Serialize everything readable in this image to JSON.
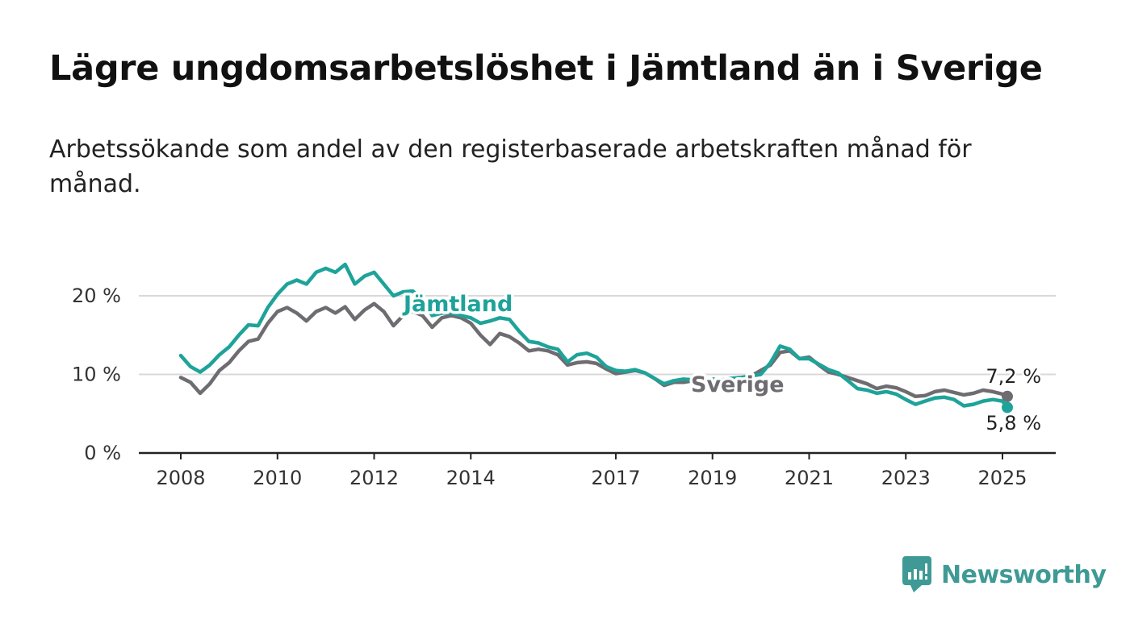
{
  "title": "Lägre ungdomsarbetslöshet i Jämtland än i Sverige",
  "subtitle": "Arbetssökande som andel av den registerbaserade arbetskraften månad för månad.",
  "brand": {
    "name": "Newsworthy",
    "color": "#3f9a95",
    "icon": "newsworthy-logo-icon"
  },
  "chart_data": {
    "type": "line",
    "ylim": [
      0,
      25
    ],
    "yticks": [
      0,
      10,
      20
    ],
    "ytick_labels": [
      "0 %",
      "10 %",
      "20 %"
    ],
    "xlim": [
      2008,
      2025.5
    ],
    "xticks": [
      2008,
      2010,
      2012,
      2014,
      2017,
      2019,
      2021,
      2023,
      2025
    ],
    "xtick_labels": [
      "2008",
      "2010",
      "2012",
      "2014",
      "2017",
      "2019",
      "2021",
      "2023",
      "2025"
    ],
    "grid": true,
    "legend": "inline labels",
    "series": [
      {
        "name": "Sverige",
        "color": "#6e6c70",
        "end_label": "7,2 %",
        "points": [
          [
            2008.0,
            9.6
          ],
          [
            2008.2,
            9.0
          ],
          [
            2008.4,
            7.6
          ],
          [
            2008.6,
            8.8
          ],
          [
            2008.8,
            10.5
          ],
          [
            2009.0,
            11.5
          ],
          [
            2009.2,
            13.0
          ],
          [
            2009.4,
            14.2
          ],
          [
            2009.6,
            14.5
          ],
          [
            2009.8,
            16.5
          ],
          [
            2010.0,
            18.0
          ],
          [
            2010.2,
            18.5
          ],
          [
            2010.4,
            17.8
          ],
          [
            2010.6,
            16.8
          ],
          [
            2010.8,
            18.0
          ],
          [
            2011.0,
            18.5
          ],
          [
            2011.2,
            17.8
          ],
          [
            2011.4,
            18.6
          ],
          [
            2011.6,
            17.0
          ],
          [
            2011.8,
            18.2
          ],
          [
            2012.0,
            19.0
          ],
          [
            2012.2,
            18.0
          ],
          [
            2012.4,
            16.2
          ],
          [
            2012.6,
            17.5
          ],
          [
            2012.8,
            18.0
          ],
          [
            2013.0,
            17.5
          ],
          [
            2013.2,
            16.0
          ],
          [
            2013.4,
            17.2
          ],
          [
            2013.6,
            17.5
          ],
          [
            2013.8,
            17.2
          ],
          [
            2014.0,
            16.5
          ],
          [
            2014.2,
            15.0
          ],
          [
            2014.4,
            13.8
          ],
          [
            2014.6,
            15.2
          ],
          [
            2014.8,
            14.8
          ],
          [
            2015.0,
            14.0
          ],
          [
            2015.2,
            13.0
          ],
          [
            2015.4,
            13.2
          ],
          [
            2015.6,
            13.0
          ],
          [
            2015.8,
            12.5
          ],
          [
            2016.0,
            11.2
          ],
          [
            2016.2,
            11.5
          ],
          [
            2016.4,
            11.6
          ],
          [
            2016.6,
            11.4
          ],
          [
            2016.8,
            10.7
          ],
          [
            2017.0,
            10.1
          ],
          [
            2017.2,
            10.3
          ],
          [
            2017.4,
            10.5
          ],
          [
            2017.6,
            10.2
          ],
          [
            2017.8,
            9.5
          ],
          [
            2018.0,
            8.6
          ],
          [
            2018.2,
            9.0
          ],
          [
            2018.4,
            9.0
          ],
          [
            2018.6,
            9.2
          ],
          [
            2018.8,
            9.2
          ],
          [
            2019.0,
            9.3
          ],
          [
            2019.2,
            9.2
          ],
          [
            2019.4,
            9.4
          ],
          [
            2019.6,
            9.5
          ],
          [
            2019.8,
            9.8
          ],
          [
            2020.0,
            10.5
          ],
          [
            2020.2,
            11.2
          ],
          [
            2020.4,
            12.8
          ],
          [
            2020.6,
            13.0
          ],
          [
            2020.8,
            12.0
          ],
          [
            2021.0,
            12.2
          ],
          [
            2021.2,
            11.2
          ],
          [
            2021.4,
            10.3
          ],
          [
            2021.6,
            10.0
          ],
          [
            2021.8,
            9.6
          ],
          [
            2022.0,
            9.2
          ],
          [
            2022.2,
            8.8
          ],
          [
            2022.4,
            8.2
          ],
          [
            2022.6,
            8.5
          ],
          [
            2022.8,
            8.3
          ],
          [
            2023.0,
            7.8
          ],
          [
            2023.2,
            7.2
          ],
          [
            2023.4,
            7.3
          ],
          [
            2023.6,
            7.8
          ],
          [
            2023.8,
            8.0
          ],
          [
            2024.0,
            7.7
          ],
          [
            2024.2,
            7.4
          ],
          [
            2024.4,
            7.6
          ],
          [
            2024.6,
            8.0
          ],
          [
            2024.8,
            7.8
          ],
          [
            2025.0,
            7.5
          ],
          [
            2025.1,
            7.2
          ]
        ]
      },
      {
        "name": "Jämtland",
        "color": "#1ea39a",
        "end_label": "5,8 %",
        "points": [
          [
            2008.0,
            12.4
          ],
          [
            2008.2,
            11.0
          ],
          [
            2008.4,
            10.3
          ],
          [
            2008.6,
            11.2
          ],
          [
            2008.8,
            12.5
          ],
          [
            2009.0,
            13.5
          ],
          [
            2009.2,
            15.0
          ],
          [
            2009.4,
            16.3
          ],
          [
            2009.6,
            16.2
          ],
          [
            2009.8,
            18.5
          ],
          [
            2010.0,
            20.2
          ],
          [
            2010.2,
            21.5
          ],
          [
            2010.4,
            22.0
          ],
          [
            2010.6,
            21.5
          ],
          [
            2010.8,
            23.0
          ],
          [
            2011.0,
            23.5
          ],
          [
            2011.2,
            23.0
          ],
          [
            2011.4,
            24.0
          ],
          [
            2011.6,
            21.5
          ],
          [
            2011.8,
            22.5
          ],
          [
            2012.0,
            23.0
          ],
          [
            2012.2,
            21.5
          ],
          [
            2012.4,
            20.0
          ],
          [
            2012.6,
            20.5
          ],
          [
            2012.8,
            20.6
          ],
          [
            2013.0,
            19.5
          ],
          [
            2013.2,
            17.5
          ],
          [
            2013.4,
            17.8
          ],
          [
            2013.6,
            17.8
          ],
          [
            2013.8,
            17.5
          ],
          [
            2014.0,
            17.2
          ],
          [
            2014.2,
            16.5
          ],
          [
            2014.4,
            16.8
          ],
          [
            2014.6,
            17.2
          ],
          [
            2014.8,
            17.0
          ],
          [
            2015.0,
            15.5
          ],
          [
            2015.2,
            14.2
          ],
          [
            2015.4,
            14.0
          ],
          [
            2015.6,
            13.5
          ],
          [
            2015.8,
            13.2
          ],
          [
            2016.0,
            11.6
          ],
          [
            2016.2,
            12.5
          ],
          [
            2016.4,
            12.7
          ],
          [
            2016.6,
            12.2
          ],
          [
            2016.8,
            11.0
          ],
          [
            2017.0,
            10.5
          ],
          [
            2017.2,
            10.4
          ],
          [
            2017.4,
            10.6
          ],
          [
            2017.6,
            10.2
          ],
          [
            2017.8,
            9.5
          ],
          [
            2018.0,
            8.8
          ],
          [
            2018.2,
            9.2
          ],
          [
            2018.4,
            9.4
          ],
          [
            2018.6,
            9.3
          ],
          [
            2018.8,
            9.2
          ],
          [
            2019.0,
            9.4
          ],
          [
            2019.2,
            9.3
          ],
          [
            2019.4,
            9.5
          ],
          [
            2019.6,
            9.6
          ],
          [
            2019.8,
            9.8
          ],
          [
            2020.0,
            10.0
          ],
          [
            2020.2,
            11.5
          ],
          [
            2020.4,
            13.6
          ],
          [
            2020.6,
            13.2
          ],
          [
            2020.8,
            12.0
          ],
          [
            2021.0,
            12.0
          ],
          [
            2021.2,
            11.3
          ],
          [
            2021.4,
            10.6
          ],
          [
            2021.6,
            10.2
          ],
          [
            2021.8,
            9.2
          ],
          [
            2022.0,
            8.2
          ],
          [
            2022.2,
            8.0
          ],
          [
            2022.4,
            7.6
          ],
          [
            2022.6,
            7.8
          ],
          [
            2022.8,
            7.5
          ],
          [
            2023.0,
            6.8
          ],
          [
            2023.2,
            6.2
          ],
          [
            2023.4,
            6.6
          ],
          [
            2023.6,
            7.0
          ],
          [
            2023.8,
            7.1
          ],
          [
            2024.0,
            6.8
          ],
          [
            2024.2,
            6.0
          ],
          [
            2024.4,
            6.2
          ],
          [
            2024.6,
            6.6
          ],
          [
            2024.8,
            6.8
          ],
          [
            2025.0,
            6.6
          ],
          [
            2025.1,
            5.8
          ]
        ]
      }
    ]
  }
}
